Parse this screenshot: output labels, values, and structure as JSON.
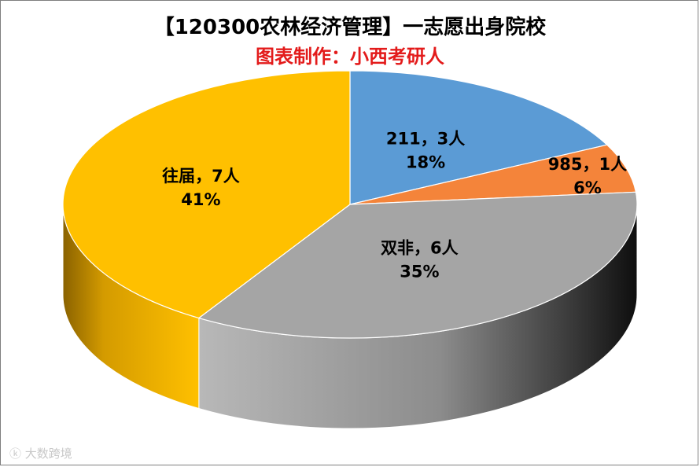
{
  "title": "【120300农林经济管理】一志愿出身院校",
  "subtitle": "图表制作：小西考研人",
  "watermark": "大数跨境",
  "colors": {
    "subtitle": "#e31b1b"
  },
  "chart_data": {
    "type": "pie",
    "title": "【120300农林经济管理】一志愿出身院校",
    "slices": [
      {
        "name": "211",
        "count": 3,
        "percent": "18%",
        "label": "211，3人",
        "color": "#5b9bd5"
      },
      {
        "name": "985",
        "count": 1,
        "percent": "6%",
        "label": "985，1人",
        "color": "#f4843a"
      },
      {
        "name": "双非",
        "count": 6,
        "percent": "35%",
        "label": "双非，6人",
        "color": "#a5a5a5"
      },
      {
        "name": "往届",
        "count": 7,
        "percent": "41%",
        "label": "往届，7人",
        "color": "#ffc000"
      }
    ],
    "style": "3d"
  }
}
